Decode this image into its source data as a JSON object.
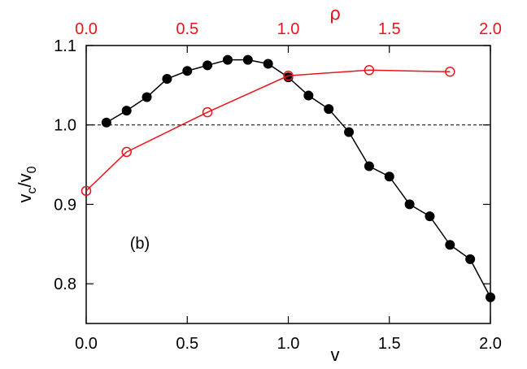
{
  "chart_data": {
    "type": "line",
    "panel_label": "(b)",
    "ylabel": "v_c/v_0",
    "ylabel_parts": {
      "base": "v",
      "sub1": "c",
      "slash": "/v",
      "sub2": "0"
    },
    "xlabel_bottom": "v",
    "xlabel_top": "ρ",
    "xlim_bottom": [
      0.0,
      2.0
    ],
    "xlim_top": [
      0.0,
      2.0
    ],
    "ylim": [
      0.75,
      1.1
    ],
    "xticks_bottom": [
      "0.0",
      "0.5",
      "1.0",
      "1.5",
      "2.0"
    ],
    "xticks_top": [
      "0.0",
      "0.5",
      "1.0",
      "1.5",
      "2.0"
    ],
    "yticks": [
      "0.8",
      "0.9",
      "1.0",
      "1.1"
    ],
    "reference_line": {
      "y": 1.0,
      "style": "dashed"
    },
    "colors": {
      "black_series": "#000000",
      "red_series": "#e8161c"
    },
    "series": [
      {
        "axis": "bottom",
        "marker": "filled-circle",
        "color": "#000000",
        "x": [
          0.1,
          0.2,
          0.3,
          0.4,
          0.5,
          0.6,
          0.7,
          0.8,
          0.9,
          1.0,
          1.1,
          1.2,
          1.3,
          1.4,
          1.5,
          1.6,
          1.7,
          1.8,
          1.9,
          2.0
        ],
        "y": [
          1.003,
          1.018,
          1.035,
          1.058,
          1.068,
          1.075,
          1.082,
          1.082,
          1.077,
          1.06,
          1.037,
          1.02,
          0.991,
          0.948,
          0.935,
          0.9,
          0.885,
          0.849,
          0.831,
          0.783
        ]
      },
      {
        "axis": "top",
        "marker": "open-circle",
        "color": "#e8161c",
        "x": [
          0.0,
          0.2,
          0.6,
          1.0,
          1.4,
          1.8
        ],
        "y": [
          0.917,
          0.966,
          1.016,
          1.062,
          1.069,
          1.067
        ]
      }
    ]
  }
}
